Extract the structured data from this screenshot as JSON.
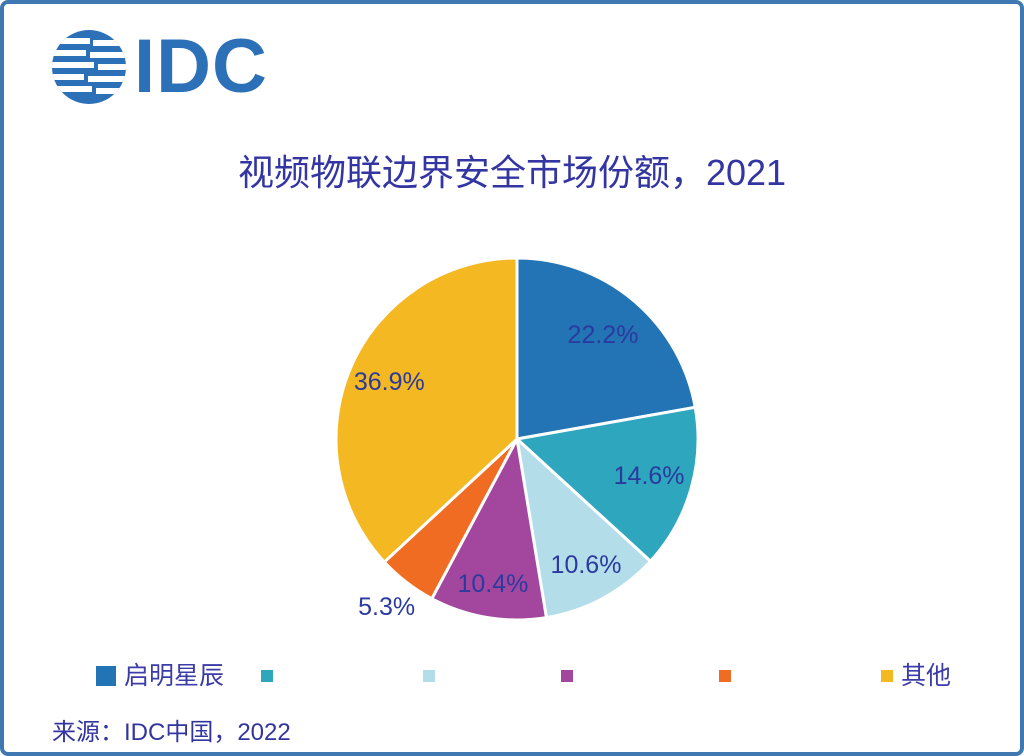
{
  "page": {
    "border_color": "#4079B2",
    "background_color": "#FFFFFF"
  },
  "logo": {
    "text": "IDC",
    "color": "#2C70B8",
    "icon": "globe-stripes-icon"
  },
  "title": {
    "text": "视频物联边界安全市场份额，2021",
    "color": "#3335A2"
  },
  "source": {
    "text": "来源：IDC中国，2022"
  },
  "chart_data": {
    "type": "pie",
    "title": "视频物联边界安全市场份额，2021",
    "unit": "percent",
    "start_angle_deg": 0,
    "direction": "clockwise",
    "label_color": "#2B3A9E",
    "slice_gap_color": "#FFFFFF",
    "legend_position": "bottom",
    "slices": [
      {
        "label": "启明星辰",
        "value": 22.2,
        "data_label": "22.2%",
        "color": "#2374B5",
        "label_radius": 0.74
      },
      {
        "label": "",
        "value": 14.6,
        "data_label": "14.6%",
        "color": "#2EA6BD",
        "label_radius": 0.76
      },
      {
        "label": "",
        "value": 10.6,
        "data_label": "10.6%",
        "color": "#B3DDE9",
        "label_radius": 0.8
      },
      {
        "label": "",
        "value": 10.4,
        "data_label": "10.4%",
        "color": "#A2479D",
        "label_radius": 0.82
      },
      {
        "label": "",
        "value": 5.3,
        "data_label": "5.3%",
        "color": "#EF6C22",
        "label_radius": 1.18
      },
      {
        "label": "其他",
        "value": 36.9,
        "data_label": "36.9%",
        "color": "#F3B822",
        "label_radius": 0.77
      }
    ]
  }
}
